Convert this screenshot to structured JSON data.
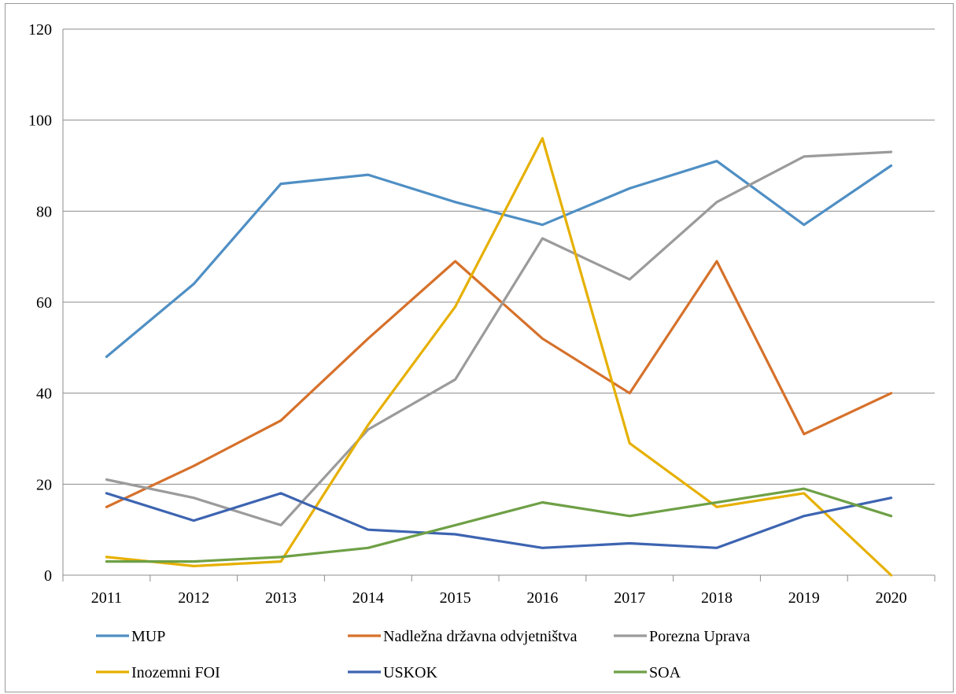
{
  "chart_data": {
    "type": "line",
    "categories": [
      "2011",
      "2012",
      "2013",
      "2014",
      "2015",
      "2016",
      "2017",
      "2018",
      "2019",
      "2020"
    ],
    "ylim": [
      0,
      120
    ],
    "yticks": [
      0,
      20,
      40,
      60,
      80,
      100,
      120
    ],
    "grid": "horizontal",
    "legend_position": "bottom",
    "series": [
      {
        "name": "MUP",
        "color": "#4f8fc4",
        "values": [
          48,
          64,
          86,
          88,
          82,
          77,
          85,
          91,
          77,
          90
        ]
      },
      {
        "name": "Nadležna državna odvjetništva",
        "color": "#d6712b",
        "values": [
          15,
          24,
          34,
          52,
          69,
          52,
          40,
          69,
          31,
          40
        ]
      },
      {
        "name": "Porezna Uprava",
        "color": "#9b9b9b",
        "values": [
          21,
          17,
          11,
          32,
          43,
          74,
          65,
          82,
          92,
          93
        ]
      },
      {
        "name": "Inozemni FOI",
        "color": "#e6b000",
        "values": [
          4,
          2,
          3,
          33,
          59,
          96,
          29,
          15,
          18,
          0
        ]
      },
      {
        "name": "USKOK",
        "color": "#3d64b1",
        "values": [
          18,
          12,
          18,
          10,
          9,
          6,
          7,
          6,
          13,
          17
        ]
      },
      {
        "name": "SOA",
        "color": "#6ea046",
        "values": [
          3,
          3,
          4,
          6,
          11,
          16,
          13,
          16,
          19,
          13
        ]
      }
    ]
  }
}
